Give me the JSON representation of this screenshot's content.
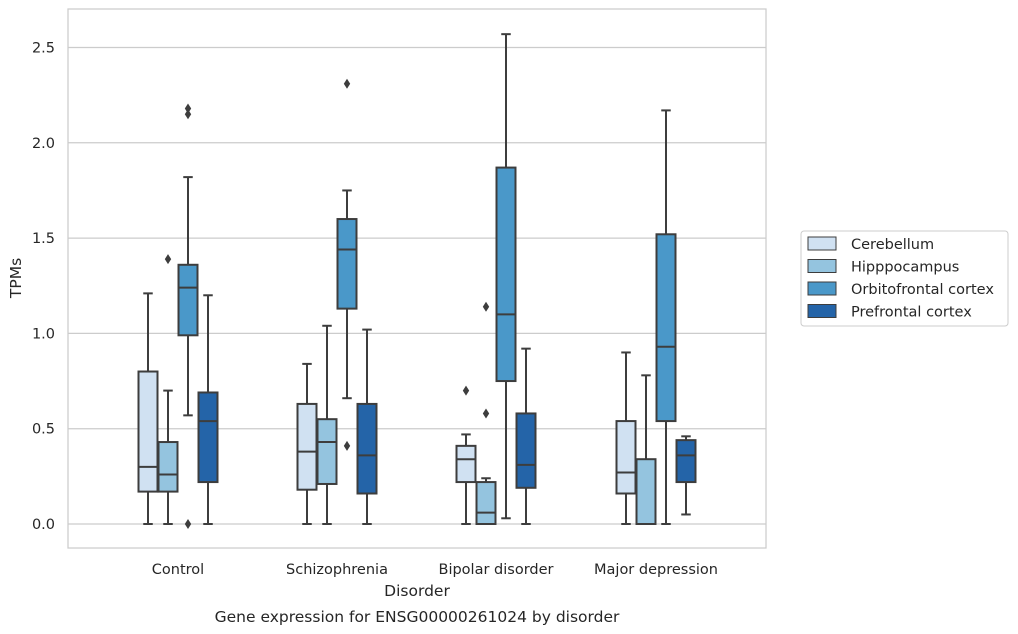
{
  "chart_data": {
    "type": "box",
    "title": "",
    "caption": "Gene expression for ENSG00000261024 by disorder",
    "xlabel": "Disorder",
    "ylabel": "TPMs",
    "ylim": [
      -0.12,
      2.7
    ],
    "yticks": [
      "0.0",
      "0.5",
      "1.0",
      "1.5",
      "2.0",
      "2.5"
    ],
    "ytick_values": [
      0,
      0.5,
      1.0,
      1.5,
      2.0,
      2.5
    ],
    "grid": "horizontal",
    "legend_position": "right",
    "categories": [
      "Control",
      "Schizophrenia",
      "Bipolar disorder",
      "Major depression"
    ],
    "series": [
      {
        "name": "Cerebellum",
        "color": "#d0e1f2",
        "boxes": [
          {
            "whisker_low": 0.0,
            "q1": 0.17,
            "median": 0.3,
            "q3": 0.8,
            "whisker_high": 1.21,
            "outliers": []
          },
          {
            "whisker_low": 0.0,
            "q1": 0.18,
            "median": 0.38,
            "q3": 0.63,
            "whisker_high": 0.84,
            "outliers": []
          },
          {
            "whisker_low": 0.0,
            "q1": 0.22,
            "median": 0.34,
            "q3": 0.41,
            "whisker_high": 0.47,
            "outliers": [
              0.7
            ]
          },
          {
            "whisker_low": 0.0,
            "q1": 0.16,
            "median": 0.27,
            "q3": 0.54,
            "whisker_high": 0.9,
            "outliers": []
          }
        ]
      },
      {
        "name": "Hipppocampus",
        "color": "#94c4df",
        "boxes": [
          {
            "whisker_low": 0.0,
            "q1": 0.17,
            "median": 0.26,
            "q3": 0.43,
            "whisker_high": 0.7,
            "outliers": [
              1.39
            ]
          },
          {
            "whisker_low": 0.0,
            "q1": 0.21,
            "median": 0.43,
            "q3": 0.55,
            "whisker_high": 1.04,
            "outliers": []
          },
          {
            "whisker_low": 0.0,
            "q1": 0.0,
            "median": 0.06,
            "q3": 0.22,
            "whisker_high": 0.24,
            "outliers": [
              0.58,
              1.14
            ]
          },
          {
            "whisker_low": 0.0,
            "q1": 0.0,
            "median": 0.0,
            "q3": 0.34,
            "whisker_high": 0.78,
            "outliers": []
          }
        ]
      },
      {
        "name": "Orbitofrontal cortex",
        "color": "#4a98c9",
        "boxes": [
          {
            "whisker_low": 0.57,
            "q1": 0.99,
            "median": 1.24,
            "q3": 1.36,
            "whisker_high": 1.82,
            "outliers": [
              0.0,
              2.15,
              2.18
            ]
          },
          {
            "whisker_low": 0.66,
            "q1": 1.13,
            "median": 1.44,
            "q3": 1.6,
            "whisker_high": 1.75,
            "outliers": [
              0.41,
              2.31
            ]
          },
          {
            "whisker_low": 0.03,
            "q1": 0.75,
            "median": 1.1,
            "q3": 1.87,
            "whisker_high": 2.57,
            "outliers": []
          },
          {
            "whisker_low": 0.0,
            "q1": 0.54,
            "median": 0.93,
            "q3": 1.52,
            "whisker_high": 2.17,
            "outliers": []
          }
        ]
      },
      {
        "name": "Prefrontal cortex",
        "color": "#2464a8",
        "boxes": [
          {
            "whisker_low": 0.0,
            "q1": 0.22,
            "median": 0.54,
            "q3": 0.69,
            "whisker_high": 1.2,
            "outliers": []
          },
          {
            "whisker_low": 0.0,
            "q1": 0.16,
            "median": 0.36,
            "q3": 0.63,
            "whisker_high": 1.02,
            "outliers": []
          },
          {
            "whisker_low": 0.0,
            "q1": 0.19,
            "median": 0.31,
            "q3": 0.58,
            "whisker_high": 0.92,
            "outliers": []
          },
          {
            "whisker_low": 0.05,
            "q1": 0.22,
            "median": 0.36,
            "q3": 0.44,
            "whisker_high": 0.46,
            "outliers": []
          }
        ]
      }
    ]
  }
}
